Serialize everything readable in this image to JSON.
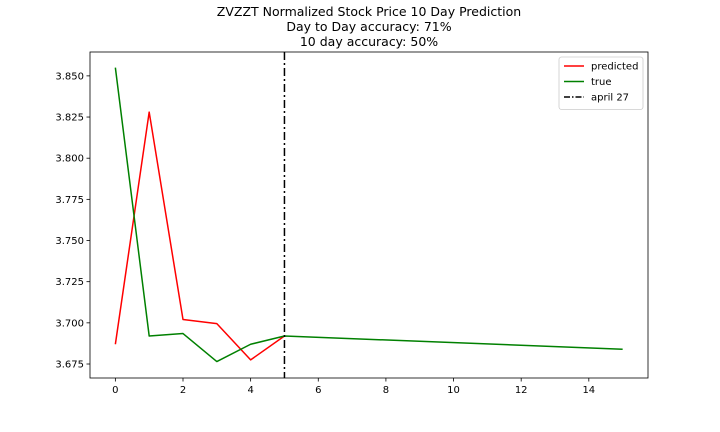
{
  "chart_data": {
    "type": "line",
    "title_lines": [
      "ZVZZT Normalized Stock Price 10 Day Prediction",
      "Day to Day accuracy: 71%",
      "10 day accuracy: 50%"
    ],
    "xlabel": "",
    "ylabel": "",
    "xlim": [
      -0.75,
      15.75
    ],
    "ylim": [
      3.6665,
      3.8645
    ],
    "xticks": [
      0,
      2,
      4,
      6,
      8,
      10,
      12,
      14
    ],
    "yticks": [
      3.675,
      3.7,
      3.725,
      3.75,
      3.775,
      3.8,
      3.825,
      3.85
    ],
    "xtick_labels": [
      "0",
      "2",
      "4",
      "6",
      "8",
      "10",
      "12",
      "14"
    ],
    "ytick_labels": [
      "3.675",
      "3.700",
      "3.725",
      "3.750",
      "3.775",
      "3.800",
      "3.825",
      "3.850"
    ],
    "grid": false,
    "legend_position": "upper right",
    "series": [
      {
        "name": "predicted",
        "color": "#ff0000",
        "style": "solid",
        "x": [
          0,
          1,
          2,
          3,
          4,
          5
        ],
        "y": [
          3.687,
          3.828,
          3.702,
          3.6995,
          3.6775,
          3.692
        ]
      },
      {
        "name": "true",
        "color": "#008000",
        "style": "solid",
        "x": [
          0,
          1,
          2,
          3,
          4,
          5,
          15
        ],
        "y": [
          3.855,
          3.692,
          3.6935,
          3.6765,
          3.687,
          3.692,
          3.684
        ]
      }
    ],
    "vlines": [
      {
        "name": "april 27",
        "x": 5,
        "color": "#000000",
        "style": "dashdot"
      }
    ]
  }
}
